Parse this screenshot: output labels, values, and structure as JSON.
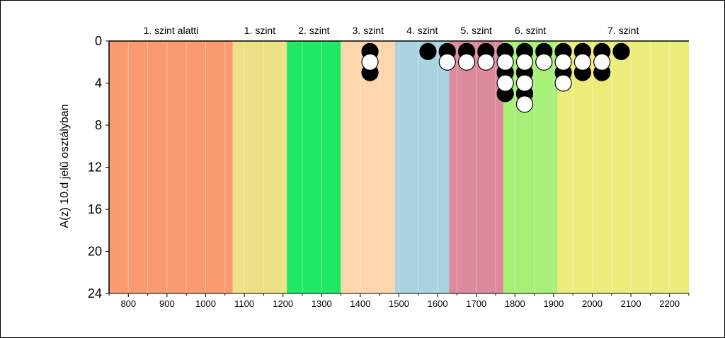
{
  "chart_data": {
    "type": "scatter",
    "ylabel": "A(z) 10.d jelű osztályban",
    "xlabel": "",
    "xlim": [
      750,
      2250
    ],
    "ylim": [
      0,
      24
    ],
    "y_inverted": true,
    "grid": true,
    "x_ticks": [
      800,
      900,
      1000,
      1100,
      1200,
      1300,
      1400,
      1500,
      1600,
      1700,
      1800,
      1900,
      2000,
      2100,
      2200
    ],
    "y_ticks": [
      0,
      4,
      8,
      12,
      16,
      20,
      24
    ],
    "bands": [
      {
        "label": "1. szint alatti",
        "from": 750,
        "to": 1070,
        "color": "#fa9a70"
      },
      {
        "label": "1. szint",
        "from": 1070,
        "to": 1210,
        "color": "#ece084"
      },
      {
        "label": "2. szint",
        "from": 1210,
        "to": 1350,
        "color": "#1ee864"
      },
      {
        "label": "3. szint",
        "from": 1350,
        "to": 1490,
        "color": "#fdd6ad"
      },
      {
        "label": "4. szint",
        "from": 1490,
        "to": 1630,
        "color": "#a8d4e2"
      },
      {
        "label": "5. szint",
        "from": 1630,
        "to": 1770,
        "color": "#dc8a9c"
      },
      {
        "label": "6. szint",
        "from": 1770,
        "to": 1910,
        "color": "#a8ef78"
      },
      {
        "label": "7. szint",
        "from": 1910,
        "to": 2250,
        "color": "#ecec7a"
      }
    ],
    "series": [
      {
        "marker": "black",
        "points": [
          {
            "x": 1425,
            "y": 1
          },
          {
            "x": 1425,
            "y": 3
          },
          {
            "x": 1575,
            "y": 1
          },
          {
            "x": 1625,
            "y": 1
          },
          {
            "x": 1675,
            "y": 1
          },
          {
            "x": 1725,
            "y": 1
          },
          {
            "x": 1775,
            "y": 1
          },
          {
            "x": 1775,
            "y": 3
          },
          {
            "x": 1775,
            "y": 5
          },
          {
            "x": 1825,
            "y": 1
          },
          {
            "x": 1825,
            "y": 3
          },
          {
            "x": 1825,
            "y": 5
          },
          {
            "x": 1875,
            "y": 1
          },
          {
            "x": 1925,
            "y": 1
          },
          {
            "x": 1925,
            "y": 3
          },
          {
            "x": 1975,
            "y": 1
          },
          {
            "x": 1975,
            "y": 3
          },
          {
            "x": 2025,
            "y": 1
          },
          {
            "x": 2025,
            "y": 3
          },
          {
            "x": 2075,
            "y": 1
          }
        ]
      },
      {
        "marker": "white",
        "points": [
          {
            "x": 1425,
            "y": 2
          },
          {
            "x": 1625,
            "y": 2
          },
          {
            "x": 1675,
            "y": 2
          },
          {
            "x": 1725,
            "y": 2
          },
          {
            "x": 1775,
            "y": 2
          },
          {
            "x": 1775,
            "y": 4
          },
          {
            "x": 1825,
            "y": 2
          },
          {
            "x": 1825,
            "y": 4
          },
          {
            "x": 1825,
            "y": 6
          },
          {
            "x": 1875,
            "y": 2
          },
          {
            "x": 1925,
            "y": 2
          },
          {
            "x": 1925,
            "y": 4
          },
          {
            "x": 1975,
            "y": 2
          },
          {
            "x": 2025,
            "y": 2
          }
        ]
      }
    ]
  }
}
